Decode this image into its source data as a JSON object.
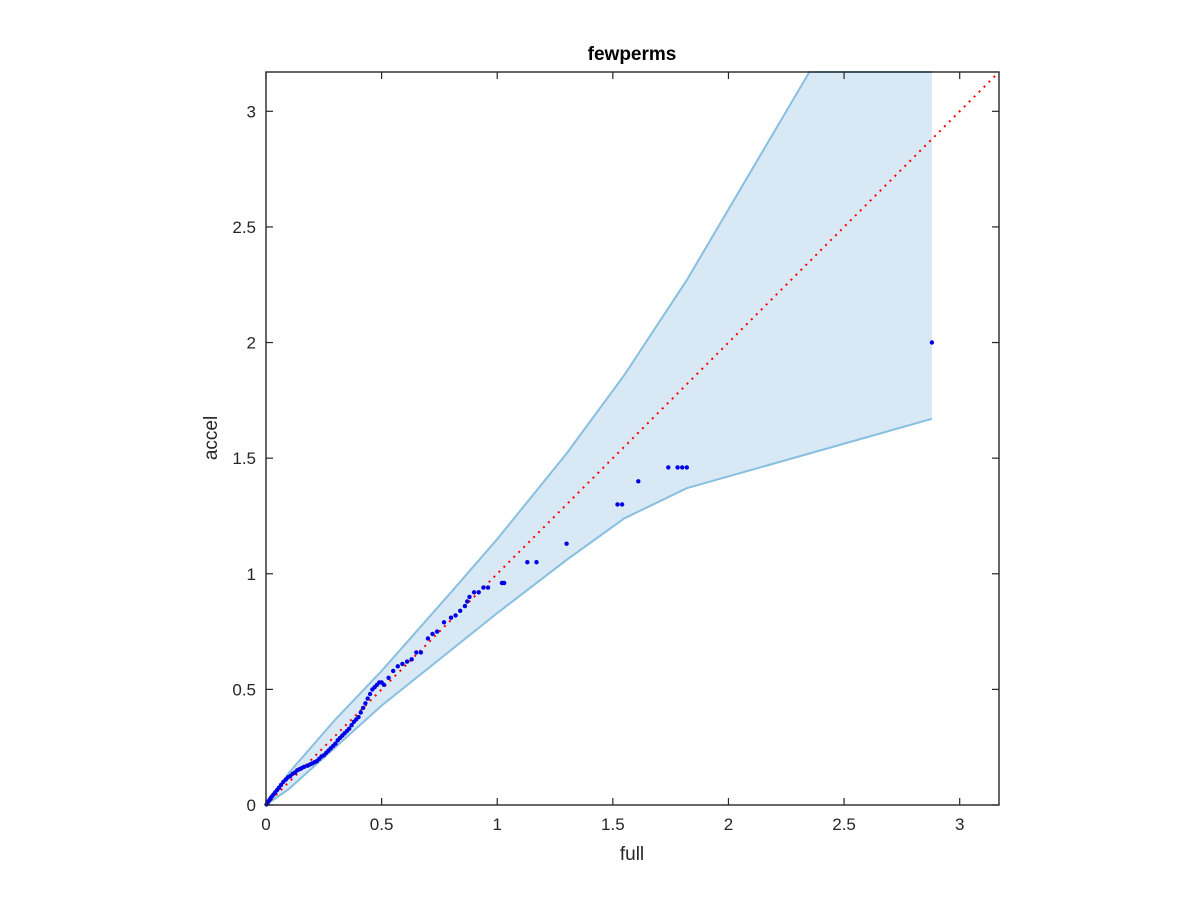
{
  "chart_data": {
    "type": "scatter",
    "title": "fewperms",
    "xlabel": "full",
    "ylabel": "accel",
    "xlim": [
      0,
      3.17
    ],
    "ylim": [
      0,
      3.17
    ],
    "x_ticks": [
      0,
      0.5,
      1,
      1.5,
      2,
      2.5,
      3
    ],
    "y_ticks": [
      0,
      0.5,
      1,
      1.5,
      2,
      2.5,
      3
    ],
    "x_tick_labels": [
      "0",
      "0.5",
      "1",
      "1.5",
      "2",
      "2.5",
      "3"
    ],
    "y_tick_labels": [
      "0",
      "0.5",
      "1",
      "1.5",
      "2",
      "2.5",
      "3"
    ],
    "grid": false,
    "colors": {
      "band_fill": "#d8e8f4",
      "band_edge": "#88bfe0",
      "points": "#0000e6",
      "reference_line": "#ff0000",
      "axis": "#262626"
    },
    "reference_line": {
      "x": [
        0,
        3.17
      ],
      "y": [
        0,
        3.17
      ],
      "style": "dotted"
    },
    "band": {
      "x": [
        0,
        0.1,
        0.3,
        0.5,
        0.8,
        1.0,
        1.3,
        1.55,
        1.82,
        2.35,
        2.88
      ],
      "upper": [
        0,
        0.14,
        0.37,
        0.58,
        0.92,
        1.15,
        1.52,
        1.86,
        2.27,
        3.17,
        3.17
      ],
      "lower": [
        0,
        0.07,
        0.25,
        0.43,
        0.67,
        0.83,
        1.06,
        1.24,
        1.37,
        1.52,
        1.67
      ]
    },
    "points": {
      "x": [
        0.002,
        0.006,
        0.01,
        0.015,
        0.02,
        0.026,
        0.032,
        0.04,
        0.048,
        0.056,
        0.065,
        0.075,
        0.085,
        0.095,
        0.105,
        0.115,
        0.125,
        0.135,
        0.145,
        0.155,
        0.165,
        0.18,
        0.19,
        0.2,
        0.21,
        0.22,
        0.23,
        0.24,
        0.25,
        0.26,
        0.27,
        0.28,
        0.29,
        0.3,
        0.31,
        0.32,
        0.33,
        0.34,
        0.35,
        0.36,
        0.37,
        0.38,
        0.39,
        0.4,
        0.41,
        0.42,
        0.43,
        0.44,
        0.45,
        0.46,
        0.47,
        0.48,
        0.49,
        0.5,
        0.51,
        0.53,
        0.55,
        0.57,
        0.59,
        0.61,
        0.63,
        0.65,
        0.67,
        0.7,
        0.72,
        0.74,
        0.77,
        0.8,
        0.82,
        0.84,
        0.86,
        0.87,
        0.88,
        0.9,
        0.92,
        0.94,
        0.96,
        1.02,
        1.03,
        1.13,
        1.17,
        1.3,
        1.52,
        1.54,
        1.61,
        1.74,
        1.78,
        1.8,
        1.82,
        2.88
      ],
      "y": [
        0.002,
        0.008,
        0.015,
        0.022,
        0.03,
        0.037,
        0.045,
        0.055,
        0.065,
        0.075,
        0.087,
        0.1,
        0.11,
        0.12,
        0.125,
        0.135,
        0.14,
        0.15,
        0.155,
        0.16,
        0.165,
        0.17,
        0.175,
        0.18,
        0.185,
        0.19,
        0.2,
        0.21,
        0.215,
        0.225,
        0.235,
        0.245,
        0.255,
        0.265,
        0.28,
        0.29,
        0.3,
        0.31,
        0.32,
        0.33,
        0.345,
        0.36,
        0.37,
        0.38,
        0.4,
        0.42,
        0.44,
        0.46,
        0.48,
        0.5,
        0.51,
        0.52,
        0.53,
        0.53,
        0.52,
        0.55,
        0.58,
        0.6,
        0.61,
        0.62,
        0.63,
        0.66,
        0.66,
        0.72,
        0.74,
        0.75,
        0.79,
        0.81,
        0.82,
        0.84,
        0.86,
        0.88,
        0.9,
        0.92,
        0.92,
        0.94,
        0.94,
        0.96,
        0.96,
        1.05,
        1.05,
        1.13,
        1.3,
        1.3,
        1.4,
        1.46,
        1.46,
        1.46,
        1.46,
        2.0
      ]
    }
  }
}
